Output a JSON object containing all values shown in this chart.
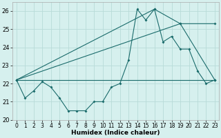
{
  "xlabel": "Humidex (Indice chaleur)",
  "bg_color": "#d6f0ee",
  "grid_color": "#b8dbd8",
  "line_color": "#1a6b6b",
  "xlim": [
    -0.5,
    23.5
  ],
  "ylim": [
    20.0,
    26.5
  ],
  "yticks": [
    20,
    21,
    22,
    23,
    24,
    25,
    26
  ],
  "xticks": [
    0,
    1,
    2,
    3,
    4,
    5,
    6,
    7,
    8,
    9,
    10,
    11,
    12,
    13,
    14,
    15,
    16,
    17,
    18,
    19,
    20,
    21,
    22,
    23
  ],
  "series1_x": [
    0,
    1,
    2,
    3,
    4,
    5,
    6,
    7,
    8,
    9,
    10,
    11,
    12,
    13,
    14,
    15,
    16,
    17,
    18,
    19,
    20,
    21,
    22,
    23
  ],
  "series1_y": [
    22.2,
    21.2,
    21.6,
    22.1,
    21.8,
    21.2,
    20.5,
    20.5,
    20.5,
    21.0,
    21.0,
    21.8,
    22.0,
    23.3,
    26.1,
    25.5,
    26.1,
    24.3,
    24.6,
    23.9,
    23.9,
    22.7,
    22.0,
    22.2
  ],
  "series2_x": [
    0,
    23
  ],
  "series2_y": [
    22.2,
    22.2
  ],
  "series3_x": [
    0,
    19,
    23
  ],
  "series3_y": [
    22.2,
    25.3,
    22.2
  ],
  "series4_x": [
    0,
    16,
    19,
    23
  ],
  "series4_y": [
    22.2,
    26.1,
    25.3,
    25.3
  ]
}
